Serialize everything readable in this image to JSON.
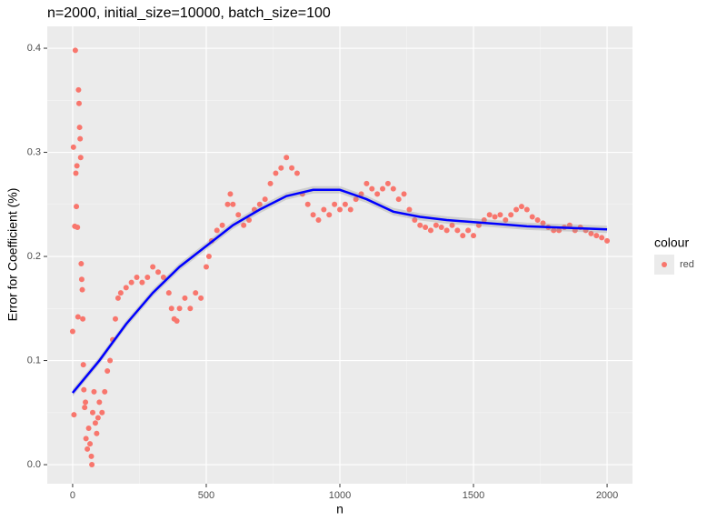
{
  "chart_data": {
    "type": "scatter",
    "title": "n=2000, initial_size=10000, batch_size=100",
    "x_label": "n",
    "y_label": "Error for Coefficient (%)",
    "xlim": [
      -95,
      2095
    ],
    "ylim": [
      -0.0183,
      0.421
    ],
    "xticks": [
      0,
      500,
      1000,
      1500,
      2000
    ],
    "yticks": [
      {
        "value": 0,
        "label": "0.0"
      },
      0.1,
      0.2,
      0.3,
      0.4
    ],
    "grid": true,
    "legend_title": "colour",
    "legend_position": "right",
    "series": [
      {
        "name": "red",
        "color": "#F8766D",
        "x": [
          0,
          3,
          5,
          8,
          10,
          12,
          14,
          16,
          18,
          20,
          22,
          24,
          26,
          28,
          30,
          32,
          34,
          36,
          38,
          40,
          42,
          45,
          48,
          50,
          55,
          60,
          65,
          70,
          72,
          75,
          80,
          85,
          90,
          95,
          100,
          110,
          120,
          130,
          140,
          150,
          160,
          170,
          180,
          200,
          220,
          240,
          260,
          280,
          300,
          320,
          340,
          360,
          370,
          380,
          390,
          400,
          420,
          440,
          460,
          480,
          500,
          510,
          520,
          540,
          560,
          580,
          590,
          600,
          620,
          640,
          660,
          680,
          700,
          720,
          740,
          760,
          780,
          800,
          820,
          840,
          860,
          880,
          900,
          920,
          940,
          960,
          980,
          1000,
          1020,
          1040,
          1060,
          1080,
          1100,
          1120,
          1140,
          1160,
          1180,
          1200,
          1220,
          1240,
          1260,
          1280,
          1300,
          1320,
          1340,
          1360,
          1380,
          1400,
          1420,
          1440,
          1460,
          1480,
          1500,
          1520,
          1540,
          1560,
          1580,
          1600,
          1620,
          1640,
          1660,
          1680,
          1700,
          1720,
          1740,
          1760,
          1780,
          1800,
          1820,
          1840,
          1860,
          1880,
          1900,
          1920,
          1940,
          1960,
          1980,
          2000
        ],
        "values": [
          0.128,
          0.305,
          0.048,
          0.229,
          0.398,
          0.28,
          0.248,
          0.287,
          0.228,
          0.142,
          0.36,
          0.347,
          0.324,
          0.313,
          0.295,
          0.193,
          0.178,
          0.168,
          0.14,
          0.096,
          0.072,
          0.055,
          0.06,
          0.025,
          0.015,
          0.035,
          0.02,
          0.008,
          0.0,
          0.05,
          0.07,
          0.04,
          0.03,
          0.045,
          0.06,
          0.05,
          0.07,
          0.09,
          0.1,
          0.12,
          0.14,
          0.16,
          0.165,
          0.17,
          0.175,
          0.18,
          0.175,
          0.18,
          0.19,
          0.185,
          0.18,
          0.165,
          0.15,
          0.14,
          0.138,
          0.15,
          0.16,
          0.15,
          0.165,
          0.16,
          0.19,
          0.2,
          0.215,
          0.225,
          0.23,
          0.25,
          0.26,
          0.25,
          0.24,
          0.23,
          0.235,
          0.245,
          0.25,
          0.255,
          0.27,
          0.28,
          0.285,
          0.295,
          0.285,
          0.28,
          0.26,
          0.25,
          0.24,
          0.235,
          0.245,
          0.24,
          0.25,
          0.245,
          0.25,
          0.245,
          0.255,
          0.26,
          0.27,
          0.265,
          0.26,
          0.265,
          0.27,
          0.265,
          0.255,
          0.26,
          0.245,
          0.235,
          0.23,
          0.228,
          0.225,
          0.23,
          0.228,
          0.225,
          0.23,
          0.225,
          0.22,
          0.225,
          0.22,
          0.23,
          0.235,
          0.24,
          0.238,
          0.24,
          0.235,
          0.24,
          0.245,
          0.248,
          0.245,
          0.238,
          0.235,
          0.232,
          0.228,
          0.225,
          0.225,
          0.228,
          0.23,
          0.225,
          0.228,
          0.225,
          0.222,
          0.22,
          0.218,
          0.215
        ]
      }
    ],
    "smooth": {
      "color": "#0000ff",
      "x": [
        0,
        100,
        200,
        300,
        400,
        500,
        600,
        700,
        800,
        900,
        1000,
        1100,
        1200,
        1300,
        1400,
        1500,
        1600,
        1700,
        1800,
        1900,
        2000
      ],
      "values": [
        0.069,
        0.1,
        0.135,
        0.165,
        0.19,
        0.21,
        0.23,
        0.245,
        0.258,
        0.264,
        0.264,
        0.255,
        0.243,
        0.238,
        0.235,
        0.233,
        0.231,
        0.229,
        0.228,
        0.227,
        0.226
      ]
    }
  }
}
